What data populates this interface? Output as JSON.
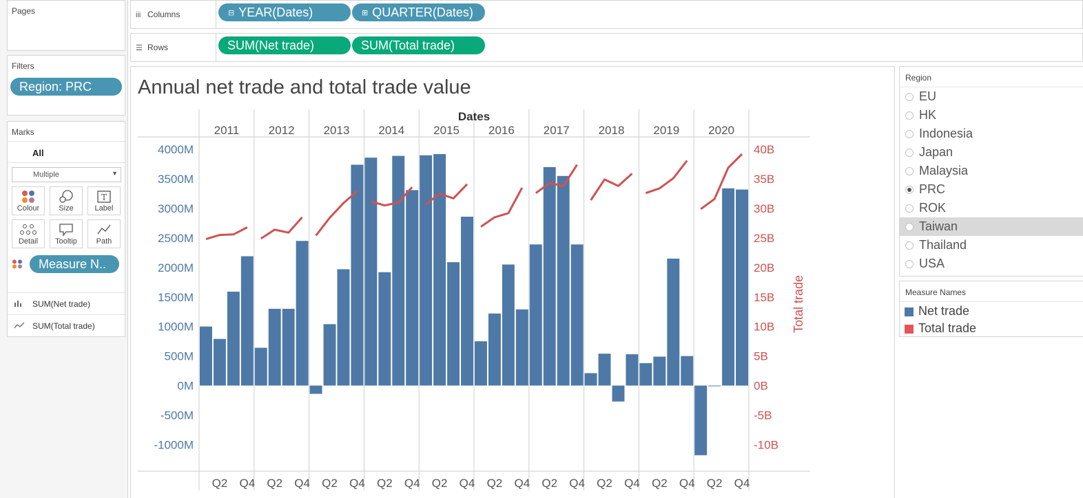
{
  "left_panel": {
    "pages_title": "Pages",
    "filters_title": "Filters",
    "filter_pill": "Region: PRC",
    "marks_title": "Marks",
    "marks_all": "All",
    "mark_type": "Multiple",
    "mark_buttons": [
      {
        "label": "Colour",
        "icon": "colour-icon"
      },
      {
        "label": "Size",
        "icon": "size-icon"
      },
      {
        "label": "Label",
        "icon": "label-icon"
      },
      {
        "label": "Detail",
        "icon": "detail-icon"
      },
      {
        "label": "Tooltip",
        "icon": "tooltip-icon"
      },
      {
        "label": "Path",
        "icon": "path-icon"
      }
    ],
    "measure_pill": "Measure N..",
    "shelf_items": [
      {
        "label": "SUM(Net trade)",
        "icon": "bar-chart-icon"
      },
      {
        "label": "SUM(Total trade)",
        "icon": "line-chart-icon"
      }
    ]
  },
  "shelves": {
    "columns_label": "Columns",
    "columns_pills": [
      "YEAR(Dates)",
      "QUARTER(Dates)"
    ],
    "rows_label": "Rows",
    "rows_pills": [
      "SUM(Net trade)",
      "SUM(Total trade)"
    ]
  },
  "view": {
    "title": "Annual net trade and total trade value"
  },
  "region_filter": {
    "title": "Region",
    "options": [
      "EU",
      "HK",
      "Indonesia",
      "Japan",
      "Malaysia",
      "PRC",
      "ROK",
      "Taiwan",
      "Thailand",
      "USA"
    ],
    "selected": "PRC",
    "highlighted": "Taiwan"
  },
  "legend": {
    "title": "Measure Names",
    "items": [
      {
        "label": "Net trade",
        "color": "#4e79a7"
      },
      {
        "label": "Total trade",
        "color": "#e15759"
      }
    ]
  },
  "chart_data": {
    "type": "bar",
    "title": "Annual net trade and total trade value",
    "xlabel": "Dates",
    "years": [
      "2011",
      "2012",
      "2013",
      "2014",
      "2015",
      "2016",
      "2017",
      "2018",
      "2019",
      "2020"
    ],
    "quarter_ticks": [
      "Q2",
      "Q4"
    ],
    "y_left": {
      "ticks": [
        "4000M",
        "3500M",
        "3000M",
        "2500M",
        "2000M",
        "1500M",
        "1000M",
        "500M",
        "0M",
        "-500M",
        "-1000M"
      ],
      "ylim": [
        -1450,
        4200
      ],
      "color": "#4e79a7"
    },
    "y_right": {
      "label": "Total trade",
      "ticks": [
        "40B",
        "35B",
        "30B",
        "25B",
        "20B",
        "15B",
        "10B",
        "5B",
        "0B",
        "-5B",
        "-10B"
      ],
      "ylim": [
        -14.5,
        42.0
      ],
      "color": "#d05252"
    },
    "series": [
      {
        "name": "Net trade",
        "type": "bar",
        "axis": "left",
        "color": "#4e79a7",
        "values": [
          1000,
          790,
          1590,
          2190,
          640,
          1300,
          1300,
          2450,
          -140,
          1040,
          1970,
          3740,
          3860,
          1920,
          3890,
          3310,
          3900,
          3920,
          2090,
          2860,
          750,
          1220,
          2050,
          1290,
          2390,
          3700,
          3550,
          2390,
          210,
          540,
          -270,
          530,
          380,
          490,
          2150,
          500,
          -1180,
          -10,
          3340,
          3320
        ]
      },
      {
        "name": "Total trade",
        "type": "line",
        "axis": "right",
        "color": "#d05252",
        "values": [
          24.8,
          25.5,
          25.6,
          26.8,
          24.9,
          26.4,
          25.9,
          28.5,
          25.4,
          28.4,
          30.9,
          32.9,
          31.2,
          30.5,
          31.0,
          33.6,
          30.7,
          32.5,
          31.7,
          34.1,
          26.9,
          28.5,
          29.2,
          33.5,
          32.6,
          34.3,
          33.8,
          37.4,
          31.4,
          34.9,
          33.8,
          35.9,
          32.6,
          33.4,
          35.1,
          38.1,
          29.9,
          31.6,
          36.9,
          39.2
        ]
      }
    ]
  }
}
